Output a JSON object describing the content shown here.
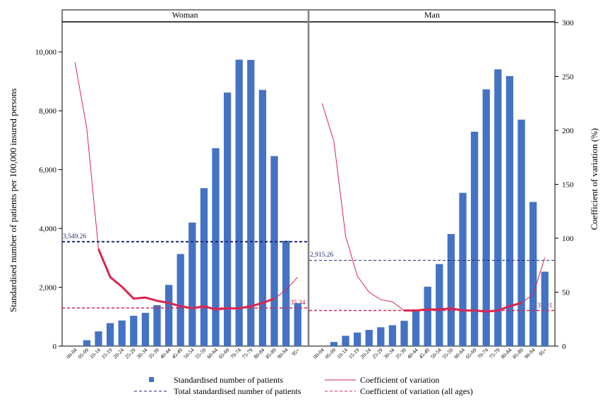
{
  "colors": {
    "bar": "#4472c4",
    "cv_line": "#d8264f",
    "total_line": "#1f2a7a",
    "cv_all_line": "#d8264f",
    "frame": "#000000",
    "divider": "#808080"
  },
  "chart_data": {
    "type": "bar",
    "y_axis_left": {
      "label": "Standardised number of patients per 100,000 insured persons",
      "ylim": [
        0,
        11000
      ],
      "ticks": [
        0,
        2000,
        4000,
        6000,
        8000,
        10000
      ],
      "tick_labels": [
        "0",
        "2,000",
        "4,000",
        "6,000",
        "8,000",
        "10,000"
      ]
    },
    "y_axis_right": {
      "label": "Coefficient of variation (%)",
      "ylim": [
        0,
        300
      ],
      "ticks": [
        0,
        50,
        100,
        150,
        200,
        250,
        300
      ],
      "tick_labels": [
        "0",
        "50",
        "100",
        "150",
        "200",
        "250",
        "300"
      ]
    },
    "categories": [
      "00-04",
      "05-09",
      "10-14",
      "15-19",
      "20-24",
      "25-29",
      "30-34",
      "35-39",
      "40-44",
      "45-49",
      "50-54",
      "55-59",
      "60-64",
      "65-69",
      "70-74",
      "75-79",
      "80-84",
      "85-89",
      "90-94",
      "95+"
    ],
    "panels": [
      {
        "title": "Woman",
        "bars": [
          0,
          200,
          500,
          780,
          870,
          1030,
          1130,
          1390,
          2080,
          3130,
          4200,
          5370,
          6730,
          8620,
          9740,
          9730,
          8710,
          6460,
          3580,
          1460
        ],
        "cv": [
          263,
          202,
          90,
          64,
          55,
          44,
          45,
          42,
          40,
          37,
          35,
          37,
          34,
          35,
          35,
          37,
          40,
          44,
          52,
          64
        ],
        "cv_thick_from_index": 2,
        "cv_thick_to_index": 17,
        "total_standardised": 3549.26,
        "total_label": "3,549.26",
        "cv_all_ages": 35.34,
        "cv_all_label": "35.34"
      },
      {
        "title": "Man",
        "bars": [
          0,
          140,
          350,
          460,
          550,
          640,
          710,
          860,
          1250,
          2020,
          2790,
          3810,
          5210,
          7290,
          8730,
          9410,
          9180,
          7700,
          4900,
          2530
        ],
        "cv": [
          225,
          190,
          102,
          65,
          50,
          43,
          41,
          33,
          33,
          34,
          34,
          35,
          33,
          33,
          32,
          33,
          37,
          40,
          48,
          82
        ],
        "cv_thick_from_index": 7,
        "cv_thick_to_index": 17,
        "total_standardised": 2915.26,
        "total_label": "2,915.26",
        "cv_all_ages": 33.01,
        "cv_all_label": "33.01"
      }
    ],
    "legend": {
      "bars": "Standardised number of patients",
      "cv": "Coefficient of variation",
      "total": "Total standardised number of patients",
      "cv_all": "Coefficient of variation (all ages)"
    }
  }
}
